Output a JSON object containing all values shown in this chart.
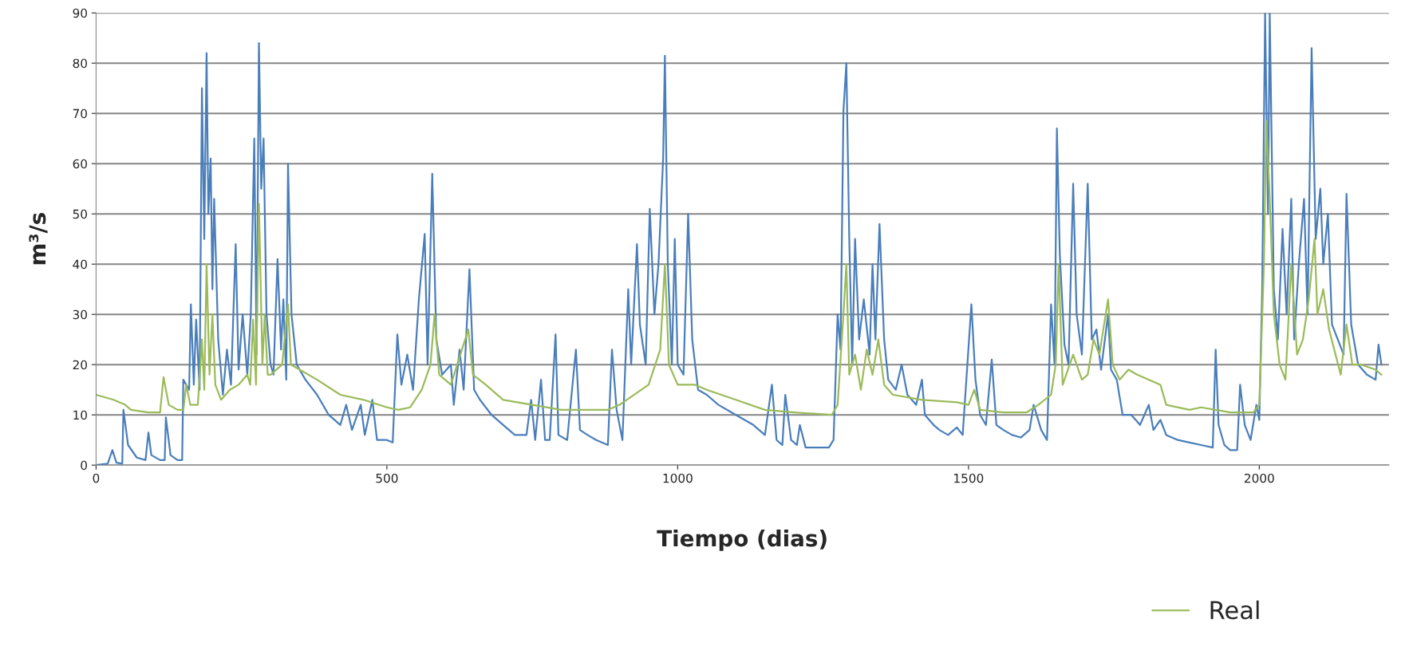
{
  "chart_data": {
    "type": "line",
    "xlabel": "Tiempo (dias)",
    "ylabel": "m³/s",
    "xlim": [
      0,
      2223
    ],
    "xticks": [
      0,
      500,
      1000,
      1500,
      2000
    ],
    "ylim": [
      0,
      90
    ],
    "yticks": [
      0,
      10,
      20,
      30,
      40,
      50,
      60,
      70,
      80,
      90
    ],
    "grid": "y",
    "legend": "bottom right",
    "marker": "none",
    "line_style": "solid",
    "series": [
      {
        "color": "#4a7ebb",
        "x": [
          0,
          20,
          28,
          35,
          45,
          47,
          55,
          70,
          85,
          90,
          95,
          110,
          118,
          120,
          128,
          140,
          148,
          150,
          160,
          163,
          168,
          172,
          178,
          182,
          186,
          190,
          193,
          197,
          200,
          203,
          210,
          218,
          225,
          232,
          240,
          245,
          252,
          260,
          266,
          272,
          276,
          280,
          284,
          288,
          293,
          300,
          305,
          312,
          318,
          322,
          327,
          330,
          336,
          345,
          360,
          380,
          400,
          420,
          430,
          440,
          455,
          462,
          475,
          483,
          500,
          510,
          518,
          525,
          535,
          545,
          555,
          565,
          570,
          578,
          585,
          595,
          610,
          615,
          625,
          632,
          642,
          650,
          660,
          680,
          700,
          720,
          740,
          748,
          755,
          765,
          772,
          780,
          790,
          795,
          810,
          825,
          832,
          845,
          860,
          880,
          887,
          895,
          905,
          915,
          920,
          930,
          935,
          945,
          952,
          960,
          967,
          975,
          978,
          983,
          990,
          995,
          1000,
          1010,
          1018,
          1025,
          1035,
          1050,
          1070,
          1100,
          1130,
          1150,
          1162,
          1170,
          1180,
          1185,
          1195,
          1205,
          1210,
          1220,
          1240,
          1260,
          1268,
          1275,
          1280,
          1285,
          1290,
          1295,
          1300,
          1305,
          1312,
          1320,
          1330,
          1335,
          1340,
          1347,
          1355,
          1362,
          1375,
          1385,
          1395,
          1410,
          1420,
          1425,
          1440,
          1450,
          1465,
          1480,
          1490,
          1505,
          1512,
          1520,
          1530,
          1540,
          1548,
          1560,
          1575,
          1590,
          1605,
          1612,
          1625,
          1635,
          1642,
          1648,
          1652,
          1657,
          1665,
          1672,
          1680,
          1686,
          1695,
          1705,
          1712,
          1720,
          1728,
          1740,
          1745,
          1755,
          1765,
          1780,
          1795,
          1810,
          1818,
          1830,
          1840,
          1860,
          1880,
          1900,
          1920,
          1925,
          1930,
          1940,
          1950,
          1962,
          1967,
          1975,
          1985,
          1995,
          2000,
          2005,
          2010,
          2015,
          2018,
          2025,
          2032,
          2040,
          2047,
          2055,
          2060,
          2068,
          2077,
          2083,
          2090,
          2097,
          2105,
          2110,
          2118,
          2125,
          2135,
          2145,
          2150,
          2158,
          2170,
          2185,
          2200,
          2205,
          2210
        ],
        "values": [
          0,
          0.3,
          3,
          0.5,
          0.3,
          11,
          4,
          1.5,
          1,
          6.5,
          2,
          1,
          1,
          9.5,
          2,
          1,
          1,
          17,
          15,
          32,
          16,
          29,
          15,
          75,
          45,
          82,
          50,
          61,
          35,
          53,
          25,
          14,
          23,
          16,
          44,
          19,
          30,
          18,
          30,
          65,
          22,
          84,
          55,
          65,
          30,
          20,
          18,
          41,
          23,
          33,
          17,
          60,
          30,
          20,
          17,
          14,
          10,
          8,
          12,
          7,
          12,
          6,
          13,
          5,
          5,
          4.5,
          26,
          16,
          22,
          15,
          33,
          46,
          20,
          58,
          25,
          18,
          20,
          12,
          23,
          15,
          39,
          15,
          13,
          10,
          8,
          6,
          6,
          13,
          5,
          17,
          5,
          5,
          26,
          6,
          5,
          23,
          7,
          6,
          5,
          4,
          23,
          11,
          5,
          35,
          20,
          44,
          28,
          20,
          51,
          30,
          40,
          61,
          81.5,
          40,
          20,
          45,
          20,
          18,
          50,
          25,
          15,
          14,
          12,
          10,
          8,
          6,
          16,
          5,
          4,
          14,
          5,
          4,
          8,
          3.5,
          3.5,
          3.5,
          5,
          30,
          23,
          70.5,
          80,
          45,
          20,
          45,
          25,
          33,
          22,
          40,
          25,
          48,
          25,
          17,
          15,
          20,
          14,
          12,
          17,
          10,
          8,
          7,
          6,
          7.5,
          6,
          32,
          17,
          10,
          8,
          21,
          8,
          7,
          6,
          5.5,
          7,
          12,
          7,
          5,
          32,
          20,
          67,
          42,
          24,
          20,
          56,
          30,
          22,
          56,
          25,
          27,
          19,
          30,
          19,
          17,
          10,
          10,
          8,
          12,
          7,
          9,
          6,
          5,
          4.5,
          4,
          3.5,
          23,
          8,
          4,
          3,
          3,
          16,
          8,
          5,
          12,
          9,
          35,
          90,
          50,
          90,
          35,
          25,
          47,
          30,
          53,
          25,
          40,
          53,
          30,
          83,
          45,
          55,
          40,
          50,
          28,
          25,
          22,
          54,
          28,
          20,
          18,
          17,
          24,
          20
        ]
      },
      {
        "name": "Real",
        "color": "#9bbb59",
        "x": [
          0,
          30,
          50,
          60,
          90,
          110,
          116,
          125,
          140,
          150,
          155,
          162,
          175,
          182,
          186,
          190,
          195,
          200,
          205,
          215,
          230,
          245,
          260,
          265,
          270,
          275,
          280,
          286,
          290,
          295,
          300,
          320,
          330,
          335,
          350,
          380,
          420,
          460,
          500,
          520,
          540,
          560,
          575,
          582,
          590,
          610,
          640,
          648,
          670,
          700,
          750,
          800,
          850,
          880,
          900,
          950,
          970,
          978,
          985,
          1000,
          1030,
          1050,
          1100,
          1150,
          1200,
          1265,
          1275,
          1285,
          1290,
          1295,
          1305,
          1315,
          1325,
          1335,
          1345,
          1355,
          1370,
          1420,
          1480,
          1500,
          1510,
          1520,
          1560,
          1600,
          1620,
          1642,
          1650,
          1655,
          1662,
          1680,
          1695,
          1705,
          1715,
          1725,
          1740,
          1748,
          1760,
          1775,
          1790,
          1830,
          1840,
          1880,
          1900,
          1950,
          1990,
          2000,
          2008,
          2012,
          2018,
          2025,
          2035,
          2045,
          2055,
          2065,
          2075,
          2085,
          2095,
          2100,
          2110,
          2120,
          2140,
          2150,
          2160,
          2175,
          2200,
          2210
        ],
        "values": [
          14,
          13,
          12,
          11,
          10.5,
          10.5,
          17.5,
          12,
          11,
          11,
          16,
          12,
          12,
          25,
          15,
          40,
          18,
          30,
          16,
          13,
          15,
          16,
          18,
          16,
          29,
          16,
          52,
          20,
          30,
          18,
          18,
          20,
          32,
          20,
          19,
          17,
          14,
          13,
          11.5,
          11,
          11.5,
          15,
          20,
          30,
          18,
          16,
          27,
          18,
          16,
          13,
          12,
          11,
          11,
          11,
          12,
          16,
          23,
          40,
          20,
          16,
          16,
          15,
          13,
          11,
          10.5,
          10,
          12,
          30,
          40,
          18,
          22,
          15,
          23,
          18,
          25,
          16,
          14,
          13,
          12.5,
          12,
          15,
          11,
          10.5,
          10.5,
          12,
          14,
          20,
          40,
          16,
          22,
          17,
          18,
          25,
          22,
          33,
          20,
          17,
          19,
          18,
          16,
          12,
          11,
          11.5,
          10.5,
          10.5,
          12,
          40,
          68.5,
          53,
          30,
          20,
          17,
          40,
          22,
          25,
          33,
          45,
          30,
          35,
          27,
          18,
          28,
          20,
          20,
          19,
          18
        ]
      }
    ]
  }
}
